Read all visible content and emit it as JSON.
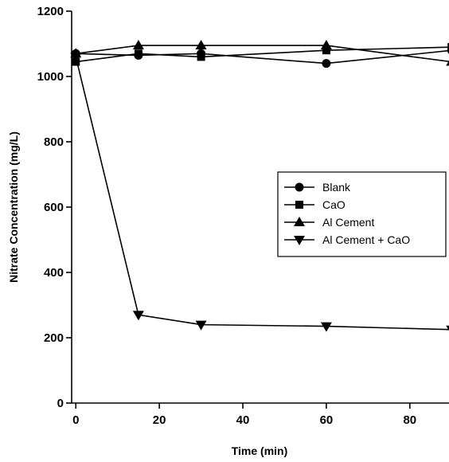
{
  "chart_data": {
    "type": "line",
    "xlabel": "Time (min)",
    "ylabel": "Nitrate Concentration (mg/L)",
    "xlim": [
      -1,
      89
    ],
    "ylim": [
      0,
      1200
    ],
    "xticks": [
      0,
      20,
      40,
      60,
      80
    ],
    "yticks": [
      0,
      200,
      400,
      600,
      800,
      1000,
      1200
    ],
    "grid": false,
    "legend_position": "center-right",
    "x": [
      0,
      15,
      30,
      60,
      90
    ],
    "series": [
      {
        "name": "Blank",
        "marker": "circle",
        "values": [
          1070,
          1065,
          1070,
          1040,
          1080
        ]
      },
      {
        "name": "CaO",
        "marker": "square",
        "values": [
          1045,
          1070,
          1060,
          1080,
          1090
        ]
      },
      {
        "name": "Al Cement",
        "marker": "triangle-up",
        "values": [
          1070,
          1095,
          1095,
          1095,
          1045
        ]
      },
      {
        "name": "Al Cement + CaO",
        "marker": "triangle-down",
        "values": [
          1060,
          270,
          240,
          235,
          225
        ]
      }
    ]
  }
}
